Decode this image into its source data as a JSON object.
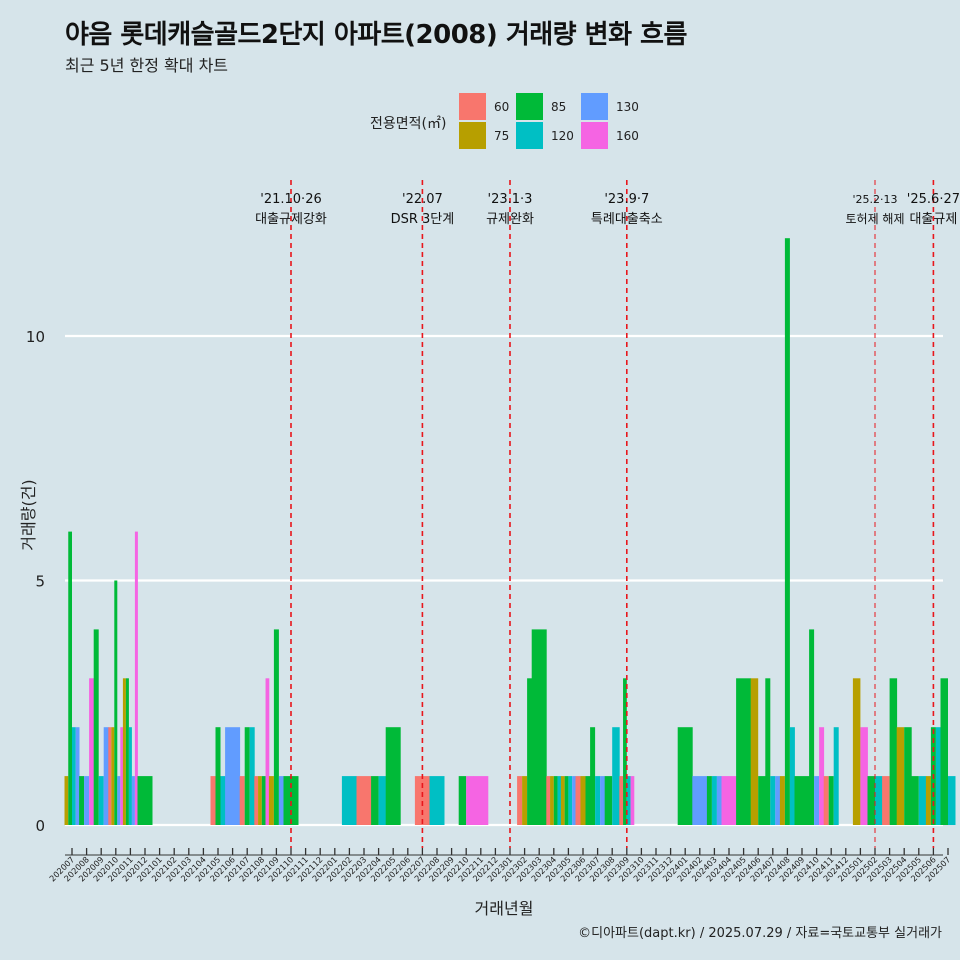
{
  "header": {
    "title": "야음 롯데캐슬골드2단지 아파트(2008) 거래량 변화 흐름",
    "subtitle": "최근 5년 한정 확대 차트"
  },
  "caption": "©디아파트(dapt.kr) / 2025.07.29 / 자료=국토교통부 실거래가",
  "colors": {
    "60": "#F8766D",
    "75": "#B79F00",
    "85": "#00BA38",
    "120": "#00BFC4",
    "130": "#619CFF",
    "160": "#F564E3"
  },
  "chart_data": {
    "type": "bar",
    "xlabel": "거래년월",
    "ylabel": "거래량(건)",
    "ylim": [
      0,
      12.5
    ],
    "yticks": [
      0,
      5,
      10
    ],
    "grid": true,
    "legend": {
      "title": "전용면적(㎡)",
      "position": "top",
      "entries": [
        "60",
        "75",
        "85",
        "120",
        "130",
        "160"
      ]
    },
    "months": [
      "202007",
      "202008",
      "202009",
      "202010",
      "202011",
      "202012",
      "202101",
      "202102",
      "202103",
      "202104",
      "202105",
      "202106",
      "202107",
      "202108",
      "202109",
      "202110",
      "202111",
      "202112",
      "202201",
      "202202",
      "202203",
      "202204",
      "202205",
      "202206",
      "202207",
      "202208",
      "202209",
      "202210",
      "202211",
      "202212",
      "202301",
      "202302",
      "202303",
      "202304",
      "202305",
      "202306",
      "202307",
      "202308",
      "202309",
      "202310",
      "202311",
      "202312",
      "202401",
      "202402",
      "202403",
      "202404",
      "202405",
      "202406",
      "202407",
      "202408",
      "202409",
      "202410",
      "202411",
      "202412",
      "202501",
      "202502",
      "202503",
      "202504",
      "202505",
      "202506",
      "202507"
    ],
    "series": [
      {
        "name": "60",
        "values": [
          0,
          0,
          0,
          2,
          0,
          0,
          0,
          0,
          0,
          0,
          1,
          0,
          1,
          1,
          0,
          0,
          0,
          0,
          0,
          0,
          1,
          0,
          0,
          0,
          1,
          0,
          0,
          0,
          0,
          0,
          0,
          1,
          0,
          1,
          0,
          1,
          0,
          0,
          1,
          0,
          0,
          0,
          0,
          0,
          0,
          0,
          0,
          0,
          0,
          0,
          0,
          0,
          1,
          0,
          0,
          0,
          1,
          0,
          0,
          0,
          0
        ]
      },
      {
        "name": "75",
        "values": [
          1,
          0,
          0,
          2,
          3,
          0,
          0,
          0,
          0,
          0,
          0,
          0,
          0,
          1,
          1,
          0,
          0,
          0,
          0,
          0,
          0,
          0,
          0,
          0,
          0,
          0,
          0,
          0,
          0,
          0,
          0,
          1,
          0,
          1,
          1,
          1,
          0,
          0,
          0,
          0,
          0,
          0,
          0,
          0,
          0,
          0,
          0,
          3,
          0,
          1,
          0,
          0,
          0,
          0,
          3,
          0,
          0,
          2,
          0,
          1,
          0
        ]
      },
      {
        "name": "85",
        "values": [
          6,
          1,
          4,
          5,
          3,
          1,
          0,
          0,
          0,
          0,
          2,
          0,
          2,
          1,
          4,
          1,
          0,
          0,
          0,
          0,
          0,
          1,
          2,
          0,
          0,
          0,
          0,
          1,
          0,
          0,
          0,
          3,
          4,
          1,
          1,
          1,
          2,
          1,
          3,
          0,
          0,
          0,
          2,
          0,
          1,
          0,
          3,
          1,
          3,
          12,
          1,
          4,
          1,
          0,
          0,
          1,
          3,
          2,
          1,
          2,
          3
        ]
      },
      {
        "name": "120",
        "values": [
          2,
          0,
          1,
          0,
          2,
          0,
          0,
          0,
          0,
          0,
          1,
          0,
          2,
          0,
          0,
          0,
          0,
          0,
          0,
          1,
          0,
          1,
          0,
          0,
          0,
          1,
          0,
          0,
          0,
          0,
          0,
          0,
          0,
          1,
          1,
          0,
          1,
          2,
          1,
          0,
          0,
          0,
          0,
          0,
          1,
          0,
          0,
          0,
          1,
          2,
          0,
          0,
          2,
          0,
          0,
          1,
          0,
          0,
          1,
          2,
          1
        ]
      },
      {
        "name": "130",
        "values": [
          2,
          1,
          2,
          1,
          1,
          0,
          0,
          0,
          0,
          0,
          0,
          2,
          0,
          0,
          1,
          0,
          0,
          0,
          0,
          0,
          0,
          0,
          0,
          0,
          0,
          0,
          0,
          0,
          0,
          0,
          0,
          0,
          0,
          0,
          1,
          0,
          1,
          0,
          0,
          0,
          0,
          0,
          0,
          1,
          1,
          0,
          0,
          0,
          1,
          0,
          0,
          1,
          0,
          0,
          0,
          0,
          0,
          0,
          0,
          0,
          0
        ]
      },
      {
        "name": "160",
        "values": [
          0,
          3,
          0,
          2,
          6,
          0,
          0,
          0,
          0,
          0,
          0,
          0,
          0,
          3,
          0,
          0,
          0,
          0,
          0,
          0,
          0,
          0,
          0,
          0,
          0,
          0,
          0,
          1,
          1,
          0,
          0,
          0,
          0,
          0,
          0,
          0,
          0,
          0,
          1,
          0,
          0,
          0,
          0,
          0,
          0,
          1,
          0,
          0,
          0,
          0,
          0,
          2,
          0,
          0,
          2,
          0,
          0,
          0,
          0,
          0,
          0
        ]
      }
    ],
    "events": [
      {
        "index": 15,
        "date": "'21.10·26",
        "label": "대출규제강화",
        "style": "major"
      },
      {
        "index": 24,
        "date": "'22.07",
        "label": "DSR 3단계",
        "style": "major"
      },
      {
        "index": 30,
        "date": "'23.1·3",
        "label": "규제완화",
        "style": "major"
      },
      {
        "index": 38,
        "date": "'23.9·7",
        "label": "특례대출축소",
        "style": "major"
      },
      {
        "index": 55,
        "date": "'25.2·13",
        "label": "토허제 해제",
        "style": "minor"
      },
      {
        "index": 59,
        "date": "'25.6·27",
        "label": "대출규제",
        "style": "major"
      }
    ]
  }
}
